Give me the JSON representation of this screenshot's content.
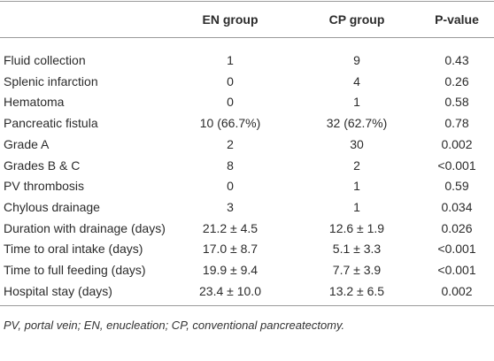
{
  "table": {
    "header": [
      "",
      "EN group",
      "CP group",
      "P-value"
    ],
    "rows": [
      [
        "Fluid collection",
        "1",
        "9",
        "0.43"
      ],
      [
        "Splenic infarction",
        "0",
        "4",
        "0.26"
      ],
      [
        "Hematoma",
        "0",
        "1",
        "0.58"
      ],
      [
        "Pancreatic fistula",
        "10 (66.7%)",
        "32 (62.7%)",
        "0.78"
      ],
      [
        "Grade A",
        "2",
        "30",
        "0.002"
      ],
      [
        "Grades B & C",
        "8",
        "2",
        "<0.001"
      ],
      [
        "PV thrombosis",
        "0",
        "1",
        "0.59"
      ],
      [
        "Chylous drainage",
        "3",
        "1",
        "0.034"
      ],
      [
        "Duration with drainage (days)",
        "21.2 ± 4.5",
        "12.6 ± 1.9",
        "0.026"
      ],
      [
        "Time to oral intake (days)",
        "17.0 ± 8.7",
        "5.1 ± 3.3",
        "<0.001"
      ],
      [
        "Time to full feeding (days)",
        "19.9 ± 9.4",
        "7.7 ± 3.9",
        "<0.001"
      ],
      [
        "Hospital stay (days)",
        "23.4 ± 10.0",
        "13.2 ± 6.5",
        "0.002"
      ]
    ],
    "footnote": "PV, portal vein; EN, enucleation; CP, conventional pancreatectomy."
  }
}
